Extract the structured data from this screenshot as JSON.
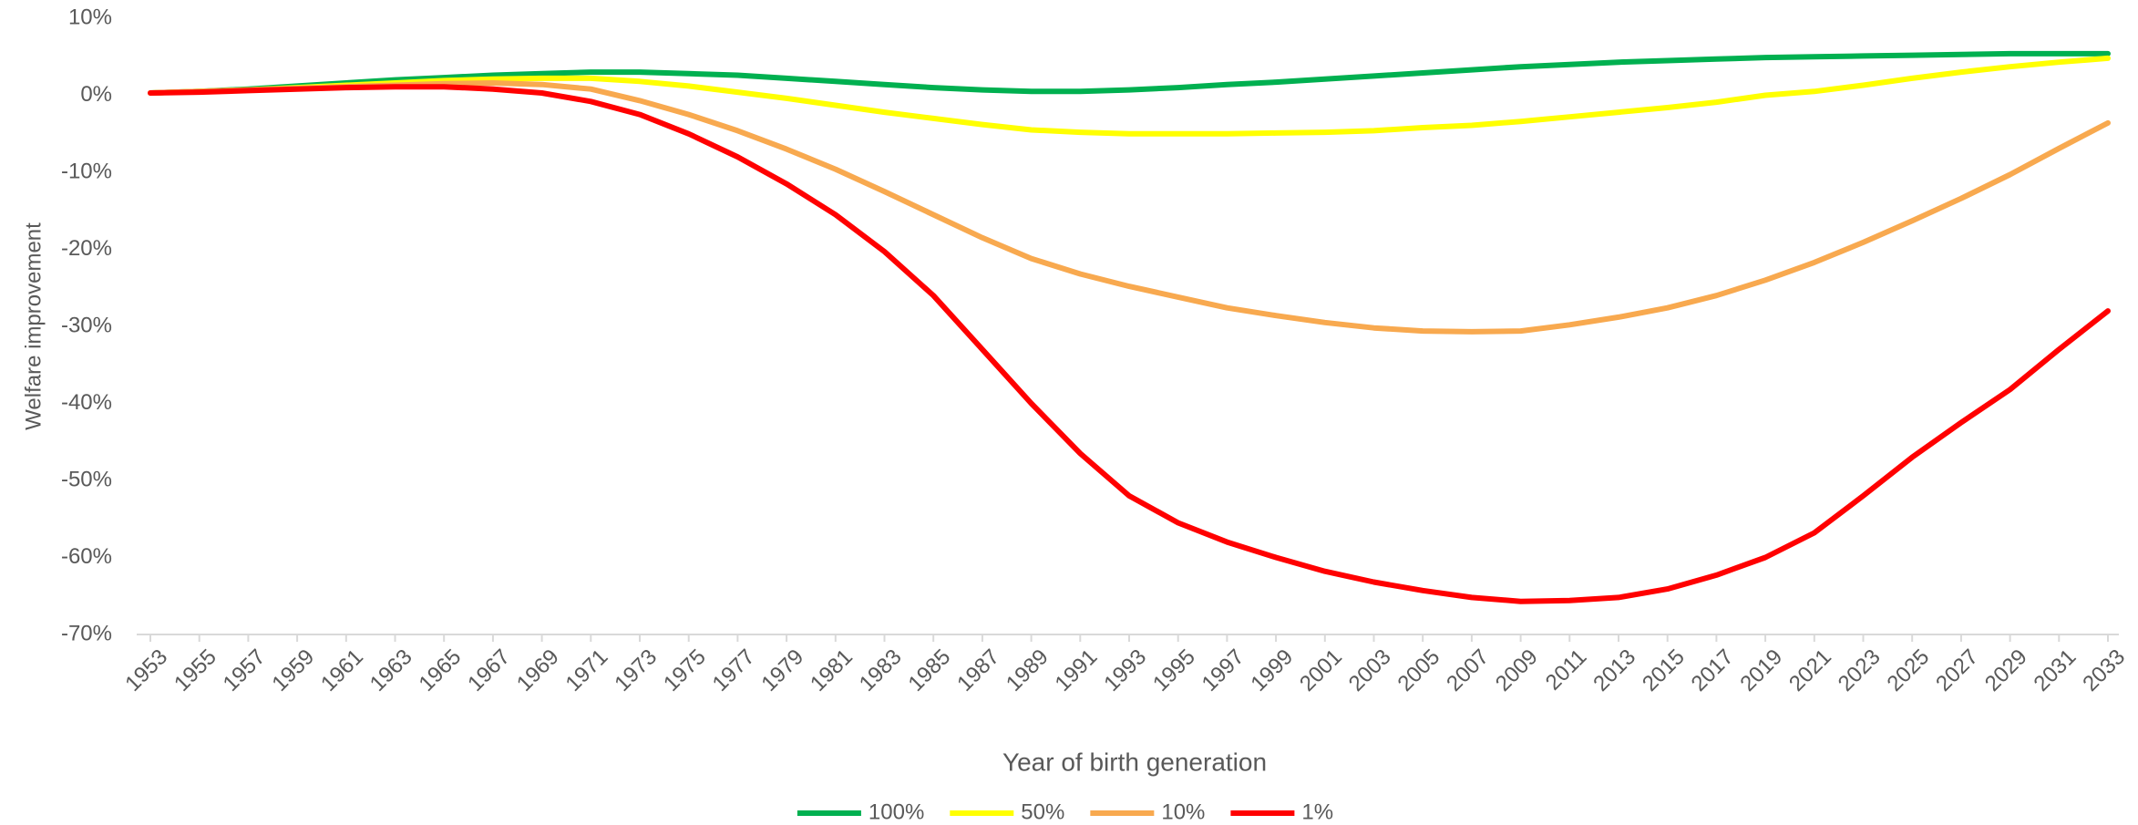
{
  "chart_data": {
    "type": "line",
    "y_label": "Welfare improvement",
    "x_label": "Year of birth generation",
    "x": [
      1953,
      1955,
      1957,
      1959,
      1961,
      1963,
      1965,
      1967,
      1969,
      1971,
      1973,
      1975,
      1977,
      1979,
      1981,
      1983,
      1985,
      1987,
      1989,
      1991,
      1993,
      1995,
      1997,
      1999,
      2001,
      2003,
      2005,
      2007,
      2009,
      2011,
      2013,
      2015,
      2017,
      2019,
      2021,
      2023,
      2025,
      2027,
      2029,
      2031,
      2033
    ],
    "xlim": [
      1953,
      2033
    ],
    "xticks": [
      1953,
      1955,
      1957,
      1959,
      1961,
      1963,
      1965,
      1967,
      1969,
      1971,
      1973,
      1975,
      1977,
      1979,
      1981,
      1983,
      1985,
      1987,
      1989,
      1991,
      1993,
      1995,
      1997,
      1999,
      2001,
      2003,
      2005,
      2007,
      2009,
      2011,
      2013,
      2015,
      2017,
      2019,
      2021,
      2023,
      2025,
      2027,
      2029,
      2031,
      2033
    ],
    "ylim": [
      -70,
      10
    ],
    "yticks": [
      {
        "value": -70,
        "label": "-70%"
      },
      {
        "value": -60,
        "label": "-60%"
      },
      {
        "value": -50,
        "label": "-50%"
      },
      {
        "value": -40,
        "label": "-40%"
      },
      {
        "value": -30,
        "label": "-30%"
      },
      {
        "value": -20,
        "label": "-20%"
      },
      {
        "value": -10,
        "label": "-10%"
      },
      {
        "value": 0,
        "label": "0%"
      },
      {
        "value": 10,
        "label": "10%"
      }
    ],
    "legend": "bottom",
    "series": [
      {
        "name": "100%",
        "color": "#00b050",
        "values": [
          0.3,
          0.5,
          0.8,
          1.2,
          1.6,
          2.0,
          2.3,
          2.6,
          2.8,
          3.0,
          3.0,
          2.8,
          2.6,
          2.2,
          1.8,
          1.4,
          1.0,
          0.7,
          0.5,
          0.5,
          0.7,
          1.0,
          1.4,
          1.7,
          2.1,
          2.5,
          2.9,
          3.3,
          3.7,
          4.0,
          4.3,
          4.5,
          4.7,
          4.9,
          5.0,
          5.1,
          5.2,
          5.3,
          5.4,
          5.4,
          5.4
        ]
      },
      {
        "name": "50%",
        "color": "#ffff00",
        "values": [
          0.3,
          0.5,
          0.7,
          1.0,
          1.3,
          1.6,
          1.9,
          2.1,
          2.2,
          2.2,
          1.8,
          1.2,
          0.4,
          -0.4,
          -1.3,
          -2.2,
          -3.0,
          -3.8,
          -4.5,
          -4.8,
          -5.0,
          -5.0,
          -5.0,
          -4.9,
          -4.8,
          -4.6,
          -4.2,
          -3.9,
          -3.4,
          -2.8,
          -2.2,
          -1.6,
          -0.9,
          0,
          0.5,
          1.3,
          2.2,
          3.0,
          3.7,
          4.3,
          4.8
        ]
      },
      {
        "name": "10%",
        "color": "#f8a94f",
        "values": [
          0.3,
          0.5,
          0.7,
          0.9,
          1.1,
          1.3,
          1.5,
          1.6,
          1.4,
          0.8,
          -0.7,
          -2.5,
          -4.6,
          -7.0,
          -9.6,
          -12.5,
          -15.5,
          -18.5,
          -21.2,
          -23.2,
          -24.8,
          -26.2,
          -27.6,
          -28.6,
          -29.5,
          -30.2,
          -30.6,
          -30.7,
          -30.6,
          -29.8,
          -28.8,
          -27.6,
          -26.0,
          -24.0,
          -21.7,
          -19.1,
          -16.3,
          -13.4,
          -10.3,
          -6.9,
          -3.6
        ]
      },
      {
        "name": "1%",
        "color": "#ff0000",
        "values": [
          0.3,
          0.4,
          0.6,
          0.8,
          1.0,
          1.1,
          1.1,
          0.8,
          0.3,
          -0.8,
          -2.5,
          -5.0,
          -8.0,
          -11.5,
          -15.5,
          -20.3,
          -26.0,
          -33.0,
          -40.0,
          -46.5,
          -52.0,
          -55.5,
          -58.0,
          -60.0,
          -61.8,
          -63.2,
          -64.3,
          -65.2,
          -65.7,
          -65.6,
          -65.2,
          -64.1,
          -62.3,
          -60.0,
          -56.8,
          -52.0,
          -47.0,
          -42.5,
          -38.2,
          -33.0,
          -28.0
        ]
      }
    ]
  }
}
